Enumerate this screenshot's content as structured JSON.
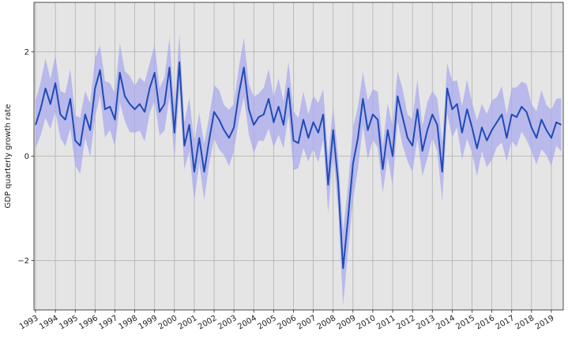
{
  "chart_data": {
    "type": "line",
    "ylabel": "GDP quarterly growth rate",
    "xlim": [
      1992.92,
      2019.6
    ],
    "ylim": [
      -2.95,
      2.95
    ],
    "grid": true,
    "legend": "none",
    "x_ticks": [
      "1993",
      "1994",
      "1995",
      "1996",
      "1997",
      "1998",
      "1999",
      "2000",
      "2001",
      "2002",
      "2003",
      "2004",
      "2005",
      "2006",
      "2007",
      "2008",
      "2009",
      "2010",
      "2011",
      "2012",
      "2013",
      "2014",
      "2015",
      "2016",
      "2017",
      "2018",
      "2019"
    ],
    "y_ticks": [
      -2,
      0,
      2
    ],
    "y_tick_labels": [
      "−2",
      "0",
      "2"
    ],
    "colors": {
      "line": "#1f4bb4",
      "band": "#a9a9ee",
      "plot_bg": "#e5e5e5",
      "grid": "#b0b0b0"
    },
    "series": [
      {
        "x": [
          1993.0,
          1993.25,
          1993.5,
          1993.75,
          1994.0,
          1994.25,
          1994.5,
          1994.75,
          1995.0,
          1995.25,
          1995.5,
          1995.75,
          1996.0,
          1996.25,
          1996.5,
          1996.75,
          1997.0,
          1997.25,
          1997.5,
          1997.75,
          1998.0,
          1998.25,
          1998.5,
          1998.75,
          1999.0,
          1999.25,
          1999.5,
          1999.75,
          2000.0,
          2000.25,
          2000.5,
          2000.75,
          2001.0,
          2001.25,
          2001.5,
          2001.75,
          2002.0,
          2002.25,
          2002.5,
          2002.75,
          2003.0,
          2003.25,
          2003.5,
          2003.75,
          2004.0,
          2004.25,
          2004.5,
          2004.75,
          2005.0,
          2005.25,
          2005.5,
          2005.75,
          2006.0,
          2006.25,
          2006.5,
          2006.75,
          2007.0,
          2007.25,
          2007.5,
          2007.75,
          2008.0,
          2008.25,
          2008.5,
          2008.75,
          2009.0,
          2009.25,
          2009.5,
          2009.75,
          2010.0,
          2010.25,
          2010.5,
          2010.75,
          2011.0,
          2011.25,
          2011.5,
          2011.75,
          2012.0,
          2012.25,
          2012.5,
          2012.75,
          2013.0,
          2013.25,
          2013.5,
          2013.75,
          2014.0,
          2014.25,
          2014.5,
          2014.75,
          2015.0,
          2015.25,
          2015.5,
          2015.75,
          2016.0,
          2016.25,
          2016.5,
          2016.75,
          2017.0,
          2017.25,
          2017.5,
          2017.75,
          2018.0,
          2018.25,
          2018.5,
          2018.75,
          2019.0,
          2019.25,
          2019.5
        ],
        "y": [
          0.6,
          0.9,
          1.3,
          1.0,
          1.4,
          0.8,
          0.7,
          1.1,
          0.3,
          0.2,
          0.8,
          0.5,
          1.3,
          1.65,
          0.9,
          0.95,
          0.7,
          1.6,
          1.15,
          1.0,
          0.9,
          1.0,
          0.85,
          1.3,
          1.6,
          0.85,
          1.0,
          1.7,
          0.45,
          1.8,
          0.2,
          0.6,
          -0.3,
          0.35,
          -0.3,
          0.3,
          0.85,
          0.7,
          0.5,
          0.35,
          0.55,
          1.2,
          1.7,
          0.9,
          0.6,
          0.75,
          0.8,
          1.1,
          0.65,
          0.95,
          0.6,
          1.3,
          0.3,
          0.25,
          0.7,
          0.35,
          0.65,
          0.45,
          0.8,
          -0.55,
          0.5,
          -0.5,
          -2.15,
          -1.2,
          -0.15,
          0.35,
          1.1,
          0.5,
          0.8,
          0.7,
          -0.25,
          0.5,
          0.0,
          1.15,
          0.75,
          0.35,
          0.2,
          0.9,
          0.1,
          0.5,
          0.8,
          0.6,
          -0.3,
          1.3,
          0.9,
          1.0,
          0.45,
          0.9,
          0.55,
          0.15,
          0.55,
          0.3,
          0.5,
          0.65,
          0.8,
          0.35,
          0.8,
          0.75,
          0.95,
          0.85,
          0.55,
          0.35,
          0.7,
          0.5,
          0.35,
          0.65,
          0.6
        ]
      }
    ]
  }
}
